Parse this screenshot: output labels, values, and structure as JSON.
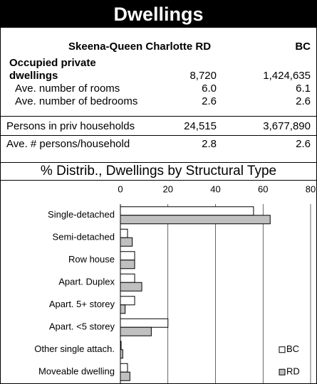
{
  "header": {
    "title": "Dwellings"
  },
  "table": {
    "columns": [
      "Skeena-Queen Charlotte RD",
      "BC"
    ],
    "rows": [
      [
        "Occupied private dwellings",
        "8,720",
        "1,424,635"
      ],
      [
        "Ave. number of rooms",
        "6.0",
        "6.1"
      ],
      [
        "Ave. number of bedrooms",
        "2.6",
        "2.6"
      ],
      [
        "Persons in priv households",
        "24,515",
        "3,677,890"
      ],
      [
        "Ave. # persons/household",
        "2.8",
        "2.6"
      ]
    ]
  },
  "chart_data": {
    "type": "hbar",
    "title": "% Distrib., Dwellings by Structural Type",
    "categories": [
      "Single-detached",
      "Semi-detached",
      "Row house",
      "Apart. Duplex",
      "Apart. 5+ storey",
      "Apart. <5 storey",
      "Other single attach.",
      "Moveable dwelling"
    ],
    "series": [
      {
        "name": "BC",
        "color": "#ffffff",
        "values": [
          56,
          3,
          6,
          6,
          6,
          20,
          0.3,
          3
        ]
      },
      {
        "name": "RD",
        "color": "#c0c0c0",
        "values": [
          63,
          5,
          6,
          9,
          2,
          13,
          1,
          4
        ]
      }
    ],
    "xlim": [
      0,
      80
    ],
    "xticks": [
      0,
      20,
      40,
      60,
      80
    ],
    "grid": true,
    "legend": "bottom-right"
  }
}
